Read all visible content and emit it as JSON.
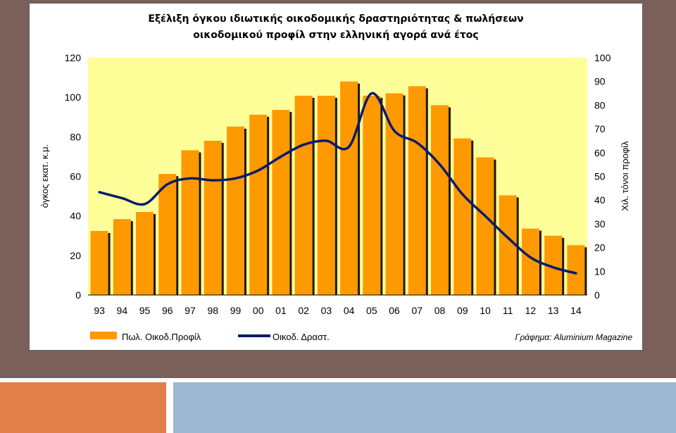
{
  "colors": {
    "slide_background": "#7a6058",
    "footer_left": "#e07f48",
    "footer_right": "#9bb7d1",
    "plot_area": "#ffff99",
    "bar_fill": "#ff9900",
    "bar_shadow": "#1a1a1a",
    "line": "#0a1a6e"
  },
  "chart_data": {
    "type": "bar",
    "title_lines": [
      "Εξέλιξη όγκου ιδιωτικής οικοδομικής δραστηριότητας & πωλήσεων",
      "οικοδομικού προφίλ στην ελληνική αγορά ανά έτος"
    ],
    "categories": [
      "93",
      "94",
      "95",
      "96",
      "97",
      "98",
      "99",
      "00",
      "01",
      "02",
      "03",
      "04",
      "05",
      "06",
      "07",
      "08",
      "09",
      "10",
      "11",
      "12",
      "13",
      "14"
    ],
    "series": [
      {
        "name": "Πωλ. Οικοδ.Προφίλ",
        "kind": "bar",
        "axis": "right",
        "values": [
          27,
          32,
          35,
          51,
          61,
          65,
          71,
          76,
          78,
          84,
          84,
          90,
          84,
          85,
          88,
          80,
          66,
          58,
          42,
          28,
          25,
          21
        ]
      },
      {
        "name": "Οικοδ. Δραστ.",
        "kind": "line",
        "axis": "left",
        "values": [
          52,
          49,
          46,
          56,
          59,
          58,
          59,
          63,
          70,
          76,
          78,
          75,
          102,
          83,
          77,
          66,
          51,
          40,
          29,
          19,
          14,
          11
        ]
      }
    ],
    "ylabel": "όγκος εκατ. κ.μ.",
    "y2label": "Χιλ. τόνοι προφίλ",
    "ylim": [
      0,
      120
    ],
    "y2lim": [
      0,
      100
    ],
    "yticks": [
      "0",
      "20",
      "40",
      "60",
      "80",
      "100",
      "120"
    ],
    "y2ticks": [
      "0",
      "10",
      "20",
      "30",
      "40",
      "50",
      "60",
      "70",
      "80",
      "90",
      "100"
    ],
    "legend_position": "bottom",
    "grid": false,
    "credit": "Γράφημα: Aluminium Magazine"
  }
}
